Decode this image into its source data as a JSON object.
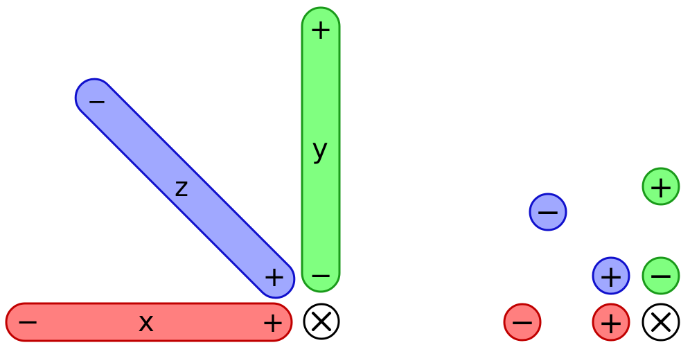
{
  "colors": {
    "x_fill": "#ff7f7f",
    "x_stroke": "#c00000",
    "y_fill": "#80ff80",
    "y_stroke": "#1a9a1a",
    "z_fill": "#a0a8ff",
    "z_stroke": "#1010cc",
    "black": "#000000"
  },
  "left_diagram": {
    "x_axis": {
      "name": "x",
      "negative": "−",
      "positive": "+"
    },
    "y_axis": {
      "name": "y",
      "negative": "−",
      "positive": "+"
    },
    "z_axis": {
      "name": "z",
      "negative": "−",
      "positive": "+"
    },
    "origin_symbol": "⊗"
  },
  "right_diagram": {
    "x_negative": "−",
    "x_positive": "+",
    "y_negative": "−",
    "y_positive": "+",
    "z_negative": "−",
    "z_positive": "+",
    "origin_symbol": "⊗"
  }
}
